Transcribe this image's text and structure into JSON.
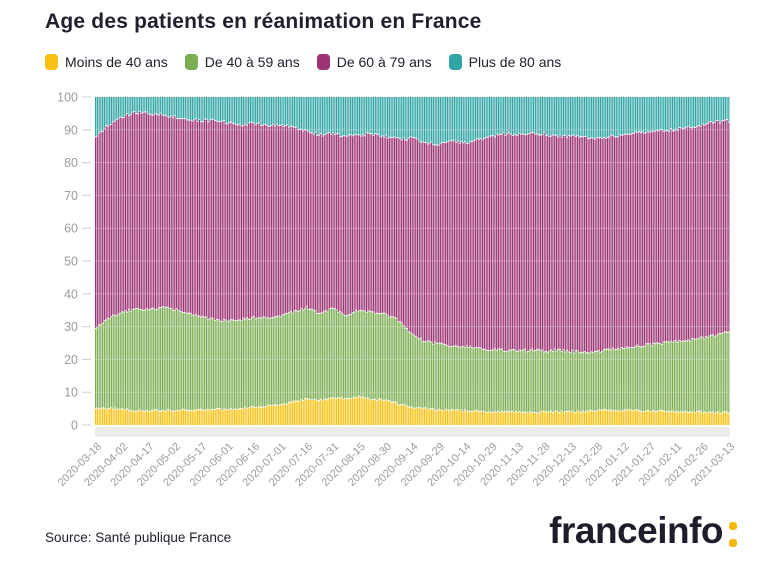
{
  "page": {
    "title": "Age des patients en réanimation en France",
    "source": "Source: Santé publique France",
    "brand": {
      "name": "franceinfo",
      "accent_color": "#f4b809",
      "text_color": "#1d1d2b"
    }
  },
  "legend": [
    {
      "label": "Moins de 40 ans",
      "color": "#fbc112"
    },
    {
      "label": "De 40 à 59 ans",
      "color": "#7bad52"
    },
    {
      "label": "De 60 à 79 ans",
      "color": "#9c3474"
    },
    {
      "label": "Plus de 80 ans",
      "color": "#30a5a4"
    }
  ],
  "axis": {
    "label_color": "#9b9b9b",
    "tick_color": "#d6d6d6",
    "grid_color": "#ebebeb",
    "baseline_strip_color": "#ececec"
  },
  "chart_data": {
    "type": "bar",
    "variant": "stacked-percent-daily",
    "title": "Age des patients en réanimation en France",
    "xlabel": "",
    "ylabel": "",
    "unit": "%",
    "ylim": [
      0,
      100
    ],
    "y_ticks": [
      0,
      10,
      20,
      30,
      40,
      50,
      60,
      70,
      80,
      90,
      100
    ],
    "grid": true,
    "legend_position": "top",
    "start_date": "2020-03-18",
    "end_date": "2021-03-13",
    "days": 361,
    "x_tick_interval_days": 15,
    "x_tick_labels": [
      "2020-03-18",
      "2020-04-02",
      "2020-04-17",
      "2020-05-02",
      "2020-05-17",
      "2020-06-01",
      "2020-06-16",
      "2020-07-01",
      "2020-07-16",
      "2020-07-31",
      "2020-08-15",
      "2020-08-30",
      "2020-09-14",
      "2020-09-29",
      "2020-10-14",
      "2020-10-29",
      "2020-11-13",
      "2020-11-28",
      "2020-12-13",
      "2020-12-28",
      "2021-01-12",
      "2021-01-27",
      "2021-02-11",
      "2021-02-26",
      "2021-03-13"
    ],
    "series_names": [
      "Moins de 40 ans",
      "De 40 à 59 ans",
      "De 60 à 79 ans",
      "Plus de 80 ans"
    ],
    "keypoints": {
      "columns": [
        "date",
        "Moins de 40 ans",
        "De 40 à 59 ans",
        "De 60 à 79 ans",
        "Plus de 80 ans"
      ],
      "rows": [
        [
          "2020-03-18",
          5.0,
          24.5,
          58.0,
          12.5
        ],
        [
          "2020-03-25",
          5.2,
          27.3,
          59.0,
          8.5
        ],
        [
          "2020-04-02",
          4.8,
          29.7,
          59.5,
          6.0
        ],
        [
          "2020-04-10",
          4.3,
          31.0,
          60.0,
          4.7
        ],
        [
          "2020-04-17",
          4.3,
          30.7,
          60.0,
          5.0
        ],
        [
          "2020-04-25",
          4.5,
          31.3,
          58.8,
          5.4
        ],
        [
          "2020-05-02",
          4.5,
          30.7,
          58.6,
          6.2
        ],
        [
          "2020-05-10",
          4.6,
          29.4,
          59.2,
          6.8
        ],
        [
          "2020-05-17",
          4.5,
          28.5,
          59.8,
          7.2
        ],
        [
          "2020-05-25",
          4.7,
          27.3,
          60.9,
          7.1
        ],
        [
          "2020-06-01",
          4.8,
          27.0,
          60.4,
          7.8
        ],
        [
          "2020-06-08",
          5.0,
          27.0,
          59.6,
          8.4
        ],
        [
          "2020-06-16",
          5.5,
          27.3,
          59.2,
          8.0
        ],
        [
          "2020-06-24",
          5.8,
          26.7,
          58.5,
          9.0
        ],
        [
          "2020-07-01",
          6.0,
          27.0,
          58.5,
          8.5
        ],
        [
          "2020-07-08",
          7.0,
          27.5,
          56.5,
          9.0
        ],
        [
          "2020-07-16",
          8.0,
          27.8,
          53.7,
          10.5
        ],
        [
          "2020-07-24",
          7.5,
          26.5,
          54.5,
          11.5
        ],
        [
          "2020-07-31",
          8.5,
          27.0,
          53.5,
          11.0
        ],
        [
          "2020-08-07",
          8.0,
          25.5,
          54.3,
          12.2
        ],
        [
          "2020-08-15",
          8.7,
          26.3,
          53.5,
          11.5
        ],
        [
          "2020-08-22",
          7.8,
          26.7,
          54.3,
          11.2
        ],
        [
          "2020-08-30",
          7.5,
          26.3,
          54.2,
          12.0
        ],
        [
          "2020-09-07",
          6.3,
          25.2,
          55.5,
          13.0
        ],
        [
          "2020-09-14",
          5.5,
          22.0,
          60.0,
          12.5
        ],
        [
          "2020-09-21",
          5.0,
          20.5,
          60.5,
          14.0
        ],
        [
          "2020-09-29",
          4.7,
          20.1,
          61.0,
          14.2
        ],
        [
          "2020-10-07",
          4.5,
          19.5,
          62.5,
          13.5
        ],
        [
          "2020-10-14",
          4.3,
          19.5,
          62.0,
          14.2
        ],
        [
          "2020-10-21",
          4.2,
          19.3,
          63.5,
          13.0
        ],
        [
          "2020-10-29",
          4.0,
          19.0,
          65.0,
          12.0
        ],
        [
          "2020-11-05",
          4.0,
          18.8,
          66.0,
          11.2
        ],
        [
          "2020-11-13",
          4.0,
          18.5,
          66.0,
          11.5
        ],
        [
          "2020-11-20",
          3.9,
          18.9,
          66.2,
          11.0
        ],
        [
          "2020-11-28",
          4.0,
          18.5,
          66.3,
          11.2
        ],
        [
          "2020-12-05",
          4.0,
          18.8,
          65.2,
          12.0
        ],
        [
          "2020-12-13",
          4.0,
          18.5,
          65.8,
          11.7
        ],
        [
          "2020-12-20",
          4.2,
          17.8,
          65.8,
          12.2
        ],
        [
          "2020-12-28",
          4.3,
          18.0,
          65.2,
          12.5
        ],
        [
          "2021-01-05",
          4.5,
          18.5,
          65.0,
          12.0
        ],
        [
          "2021-01-12",
          4.5,
          19.0,
          64.8,
          11.7
        ],
        [
          "2021-01-20",
          4.4,
          19.6,
          65.0,
          11.0
        ],
        [
          "2021-01-27",
          4.3,
          20.2,
          64.8,
          10.7
        ],
        [
          "2021-02-04",
          4.2,
          20.8,
          64.8,
          10.2
        ],
        [
          "2021-02-11",
          4.2,
          21.1,
          64.7,
          10.0
        ],
        [
          "2021-02-18",
          4.0,
          21.8,
          65.0,
          9.2
        ],
        [
          "2021-02-26",
          4.0,
          22.5,
          65.0,
          8.5
        ],
        [
          "2021-03-05",
          3.8,
          23.5,
          65.0,
          7.7
        ],
        [
          "2021-03-13",
          3.7,
          24.6,
          64.5,
          7.2
        ]
      ]
    }
  }
}
